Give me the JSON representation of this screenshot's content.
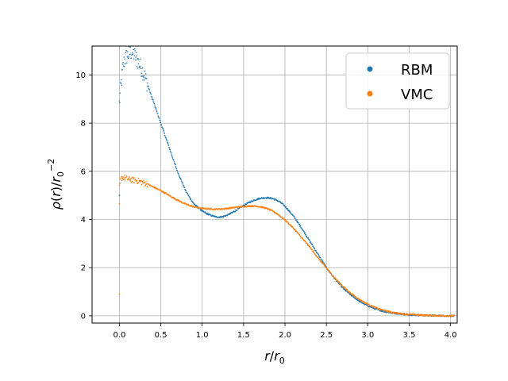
{
  "chart_data": {
    "type": "scatter",
    "xlabel": {
      "num": "r",
      "slash": "/",
      "den": "r",
      "den_sub": "0"
    },
    "ylabel": {
      "rho": "ρ",
      "open": "(",
      "r": "r",
      "close": ")/",
      "den": "r",
      "den_sub": "0",
      "den_sup": "−2"
    },
    "xlim": [
      -0.33,
      4.08
    ],
    "ylim": [
      -0.3,
      11.2
    ],
    "xticks": [
      "0.0",
      "0.5",
      "1.0",
      "1.5",
      "2.0",
      "2.5",
      "3.0",
      "3.5",
      "4.0"
    ],
    "xtick_values": [
      0,
      0.5,
      1.0,
      1.5,
      2.0,
      2.5,
      3.0,
      3.5,
      4.0
    ],
    "yticks": [
      "0",
      "2",
      "4",
      "6",
      "8",
      "10"
    ],
    "ytick_values": [
      0,
      2,
      4,
      6,
      8,
      10
    ],
    "grid": true,
    "legend_position": "top-right",
    "series": [
      {
        "name": "RBM",
        "color": "#1f77b4",
        "x": [
          0.0,
          0.02,
          0.05,
          0.08,
          0.1,
          0.12,
          0.15,
          0.18,
          0.2,
          0.25,
          0.3,
          0.35,
          0.4,
          0.45,
          0.5,
          0.55,
          0.6,
          0.65,
          0.7,
          0.75,
          0.8,
          0.85,
          0.9,
          0.95,
          1.0,
          1.05,
          1.1,
          1.15,
          1.2,
          1.25,
          1.3,
          1.35,
          1.4,
          1.45,
          1.5,
          1.55,
          1.6,
          1.65,
          1.7,
          1.75,
          1.8,
          1.85,
          1.9,
          1.95,
          2.0,
          2.1,
          2.2,
          2.3,
          2.4,
          2.5,
          2.6,
          2.7,
          2.8,
          2.9,
          3.0,
          3.1,
          3.2,
          3.3,
          3.4,
          3.5,
          3.6,
          3.7,
          3.8,
          3.9,
          4.0,
          4.05
        ],
        "y": [
          8.8,
          9.6,
          10.5,
          10.75,
          10.8,
          10.9,
          10.95,
          10.85,
          10.7,
          10.4,
          10.0,
          9.5,
          9.0,
          8.5,
          8.0,
          7.5,
          7.0,
          6.5,
          6.0,
          5.6,
          5.2,
          4.9,
          4.65,
          4.5,
          4.35,
          4.25,
          4.18,
          4.12,
          4.1,
          4.12,
          4.18,
          4.26,
          4.36,
          4.47,
          4.58,
          4.68,
          4.76,
          4.83,
          4.88,
          4.9,
          4.9,
          4.87,
          4.8,
          4.7,
          4.55,
          4.15,
          3.65,
          3.1,
          2.55,
          2.0,
          1.55,
          1.15,
          0.85,
          0.6,
          0.42,
          0.28,
          0.18,
          0.12,
          0.08,
          0.05,
          0.03,
          0.02,
          0.01,
          0.005,
          0.0,
          0.0
        ]
      },
      {
        "name": "VMC",
        "color": "#ff7f0e",
        "x": [
          0.0,
          0.02,
          0.05,
          0.08,
          0.1,
          0.15,
          0.2,
          0.25,
          0.3,
          0.35,
          0.4,
          0.45,
          0.5,
          0.55,
          0.6,
          0.65,
          0.7,
          0.75,
          0.8,
          0.85,
          0.9,
          0.95,
          1.0,
          1.05,
          1.1,
          1.15,
          1.2,
          1.25,
          1.3,
          1.35,
          1.4,
          1.45,
          1.5,
          1.55,
          1.6,
          1.65,
          1.7,
          1.75,
          1.8,
          1.85,
          1.9,
          1.95,
          2.0,
          2.1,
          2.2,
          2.3,
          2.4,
          2.5,
          2.6,
          2.7,
          2.8,
          2.9,
          3.0,
          3.1,
          3.2,
          3.3,
          3.4,
          3.5,
          3.6,
          3.7,
          3.8,
          3.9,
          4.0,
          4.05
        ],
        "y": [
          5.3,
          5.7,
          5.75,
          5.7,
          5.68,
          5.65,
          5.62,
          5.58,
          5.52,
          5.45,
          5.37,
          5.28,
          5.2,
          5.1,
          5.0,
          4.9,
          4.81,
          4.72,
          4.64,
          4.58,
          4.53,
          4.49,
          4.46,
          4.45,
          4.44,
          4.43,
          4.43,
          4.44,
          4.46,
          4.48,
          4.5,
          4.52,
          4.54,
          4.55,
          4.56,
          4.55,
          4.53,
          4.49,
          4.43,
          4.35,
          4.25,
          4.12,
          3.98,
          3.65,
          3.25,
          2.85,
          2.4,
          1.98,
          1.58,
          1.22,
          0.92,
          0.68,
          0.48,
          0.33,
          0.22,
          0.14,
          0.09,
          0.06,
          0.04,
          0.02,
          0.01,
          0.005,
          0.0,
          0.0
        ]
      }
    ],
    "outliers": [
      {
        "series": "VMC",
        "x": 0.0,
        "y": 0.9
      },
      {
        "series": "VMC",
        "x": 0.0,
        "y": 4.65
      },
      {
        "series": "RBM",
        "x": 0.0,
        "y": 5.0
      }
    ]
  }
}
